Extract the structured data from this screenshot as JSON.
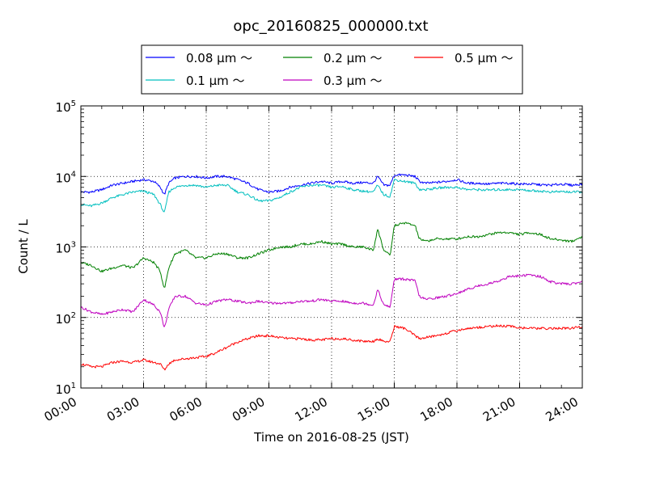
{
  "chart_data": {
    "type": "line",
    "title": "opc_20160825_000000.txt",
    "xlabel": "Time on 2016-08-25 (JST)",
    "ylabel": "Count / L",
    "xlim": [
      "00:00",
      "24:00"
    ],
    "ylim": [
      10,
      100000
    ],
    "yscale": "log",
    "grid": true,
    "legend_position": "top",
    "x_ticks": [
      "00:00",
      "03:00",
      "06:00",
      "09:00",
      "12:00",
      "15:00",
      "18:00",
      "21:00",
      "24:00"
    ],
    "y_ticks": [
      {
        "base": "10",
        "exp": "1",
        "value": 10
      },
      {
        "base": "10",
        "exp": "2",
        "value": 100
      },
      {
        "base": "10",
        "exp": "3",
        "value": 1000
      },
      {
        "base": "10",
        "exp": "4",
        "value": 10000
      },
      {
        "base": "10",
        "exp": "5",
        "value": 100000
      }
    ],
    "x_hours": [
      0,
      0.5,
      1,
      1.5,
      2,
      2.5,
      3,
      3.5,
      3.8,
      4,
      4.2,
      4.5,
      5,
      5.5,
      6,
      6.5,
      7,
      7.5,
      8,
      8.5,
      9,
      9.5,
      10,
      10.5,
      11,
      11.5,
      12,
      12.5,
      13,
      13.5,
      14,
      14.2,
      14.5,
      14.8,
      15,
      15.5,
      16,
      16.2,
      16.5,
      17,
      17.5,
      18,
      18.5,
      19,
      19.5,
      20,
      20.5,
      21,
      21.5,
      22,
      22.5,
      23,
      23.5,
      24
    ],
    "series": [
      {
        "name": "0.08 μm ～",
        "color": "#0000ff",
        "values": [
          6000,
          6000,
          6500,
          7500,
          8000,
          8500,
          9000,
          8500,
          7000,
          5500,
          8000,
          9500,
          10000,
          10000,
          9500,
          10000,
          10000,
          9000,
          8000,
          6500,
          6000,
          6200,
          7000,
          7500,
          8000,
          8500,
          8000,
          8500,
          8000,
          8200,
          8000,
          10000,
          7500,
          7500,
          10500,
          10500,
          10000,
          8500,
          8000,
          8200,
          8500,
          9000,
          8000,
          8000,
          7800,
          8000,
          8000,
          7800,
          7800,
          7600,
          7500,
          7800,
          7500,
          7800
        ]
      },
      {
        "name": "0.1 μm ～",
        "color": "#00bfbf",
        "values": [
          4000,
          3800,
          4200,
          5000,
          5500,
          6000,
          6200,
          5500,
          4000,
          3000,
          6000,
          7000,
          7500,
          7500,
          7000,
          7500,
          7500,
          6000,
          5500,
          4500,
          4500,
          5000,
          6000,
          7000,
          7500,
          7500,
          7000,
          7200,
          6500,
          6200,
          6000,
          7500,
          5500,
          5200,
          9000,
          8500,
          8000,
          6500,
          6500,
          6800,
          7000,
          7000,
          6500,
          6500,
          6400,
          6500,
          6500,
          6500,
          6300,
          6200,
          6000,
          6100,
          6000,
          6000
        ]
      },
      {
        "name": "0.2 μm ～",
        "color": "#008000",
        "values": [
          600,
          550,
          450,
          500,
          550,
          500,
          700,
          600,
          450,
          250,
          500,
          800,
          900,
          700,
          700,
          800,
          800,
          700,
          700,
          800,
          900,
          1000,
          1000,
          1100,
          1100,
          1200,
          1100,
          1100,
          1000,
          1000,
          900,
          1800,
          900,
          750,
          2000,
          2200,
          2000,
          1300,
          1200,
          1300,
          1300,
          1300,
          1400,
          1400,
          1500,
          1600,
          1600,
          1500,
          1600,
          1500,
          1300,
          1250,
          1200,
          1400
        ]
      },
      {
        "name": "0.3 μm ～",
        "color": "#bf00bf",
        "values": [
          140,
          120,
          110,
          120,
          130,
          120,
          180,
          150,
          120,
          70,
          130,
          200,
          200,
          160,
          150,
          170,
          180,
          170,
          160,
          170,
          160,
          160,
          160,
          170,
          170,
          180,
          170,
          170,
          160,
          160,
          150,
          250,
          150,
          140,
          350,
          350,
          330,
          200,
          180,
          190,
          200,
          220,
          250,
          280,
          300,
          330,
          380,
          390,
          400,
          380,
          320,
          300,
          300,
          320
        ]
      },
      {
        "name": "0.5 μm ～",
        "color": "#ff0000",
        "values": [
          22,
          20,
          20,
          23,
          24,
          23,
          25,
          23,
          22,
          18,
          22,
          25,
          26,
          27,
          28,
          32,
          38,
          45,
          50,
          55,
          55,
          52,
          50,
          50,
          48,
          48,
          50,
          50,
          48,
          46,
          46,
          50,
          46,
          45,
          75,
          70,
          55,
          50,
          52,
          55,
          60,
          65,
          70,
          72,
          75,
          76,
          75,
          72,
          70,
          70,
          70,
          70,
          70,
          75
        ]
      }
    ]
  }
}
